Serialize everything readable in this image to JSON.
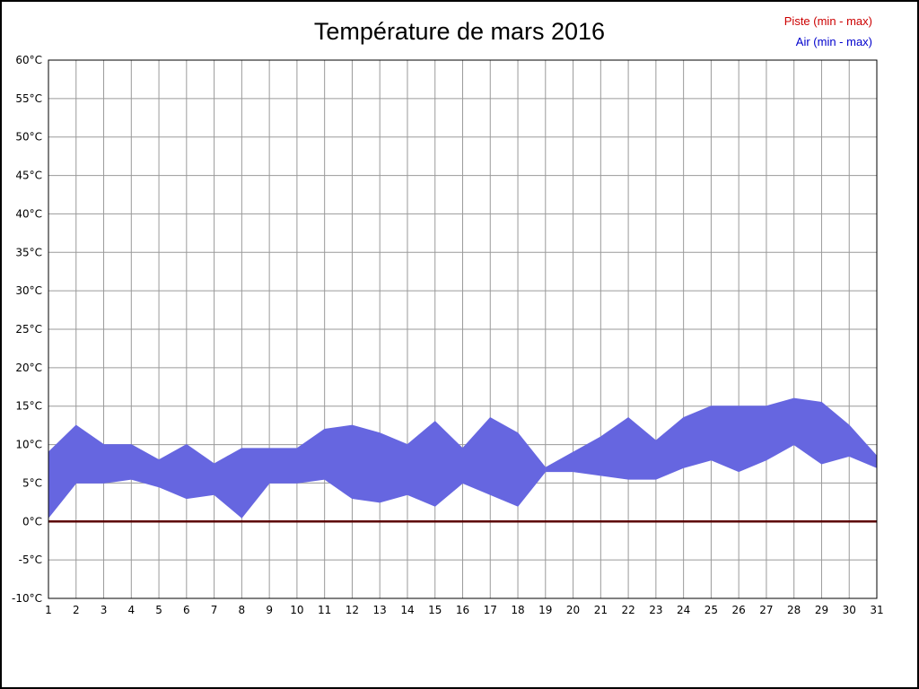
{
  "title": "Température de mars 2016",
  "legend": {
    "piste": {
      "label": "Piste (min - max)",
      "color": "#cc0000"
    },
    "air": {
      "label": "Air (min - max)",
      "color": "#0000cc"
    }
  },
  "chart_data": {
    "type": "area",
    "title": "Température de mars 2016",
    "xlabel": "",
    "ylabel": "",
    "x": [
      1,
      2,
      3,
      4,
      5,
      6,
      7,
      8,
      9,
      10,
      11,
      12,
      13,
      14,
      15,
      16,
      17,
      18,
      19,
      20,
      21,
      22,
      23,
      24,
      25,
      26,
      27,
      28,
      29,
      30,
      31
    ],
    "ylim": [
      -10,
      60
    ],
    "ytick_step": 5,
    "ytick_suffix": "°C",
    "grid": true,
    "legend_position": "top-right",
    "colors": {
      "grid": "#9a9a9a",
      "axis": "#000000",
      "air_band": "#6666e0",
      "piste_line": "#5c0000"
    },
    "series": [
      {
        "name": "Air (min - max)",
        "style": "band",
        "color": "#6666e0",
        "min": [
          0.5,
          5,
          5,
          5.5,
          4.5,
          3,
          3.5,
          0.5,
          5,
          5,
          5.5,
          3,
          2.5,
          3.5,
          2,
          5,
          3.5,
          2,
          6.5,
          6.5,
          6,
          5.5,
          5.5,
          7,
          8,
          6.5,
          8,
          10,
          7.5,
          8.5,
          7
        ],
        "max": [
          9,
          12.5,
          10,
          10,
          8,
          10,
          7.5,
          9.5,
          9.5,
          9.5,
          12,
          12.5,
          11.5,
          10,
          13,
          9.5,
          13.5,
          11.5,
          7,
          9,
          11,
          13.5,
          10.5,
          13.5,
          15,
          15,
          15,
          16,
          15.5,
          12.5,
          8.5
        ]
      },
      {
        "name": "Piste (min - max)",
        "style": "band",
        "color": "#5c0000",
        "min": [
          0,
          0,
          0,
          0,
          0,
          0,
          0,
          0,
          0,
          0,
          0,
          0,
          0,
          0,
          0,
          0,
          0,
          0,
          0,
          0,
          0,
          0,
          0,
          0,
          0,
          0,
          0,
          0,
          0,
          0,
          0
        ],
        "max": [
          0,
          0,
          0,
          0,
          0,
          0,
          0,
          0,
          0,
          0,
          0,
          0,
          0,
          0,
          0,
          0,
          0,
          0,
          0,
          0,
          0,
          0,
          0,
          0,
          0,
          0,
          0,
          0,
          0,
          0,
          0
        ]
      }
    ]
  }
}
